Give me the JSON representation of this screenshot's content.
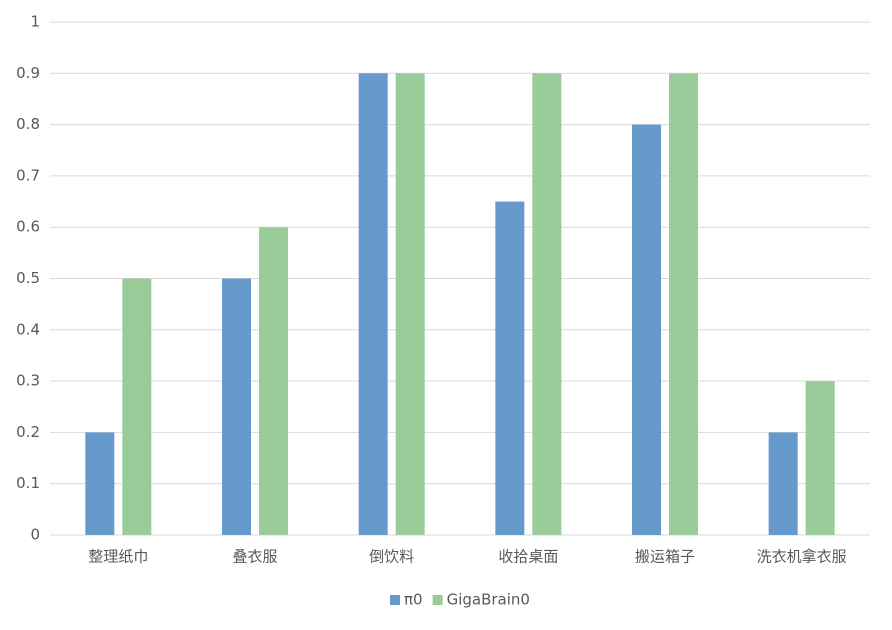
{
  "chart_data": {
    "type": "bar",
    "categories": [
      "整理纸巾",
      "叠衣服",
      "倒饮料",
      "收拾桌面",
      "搬运箱子",
      "洗衣机拿衣服"
    ],
    "series": [
      {
        "name": "π0",
        "color": "#6699cc",
        "values": [
          0.2,
          0.5,
          0.9,
          0.65,
          0.8,
          0.2
        ]
      },
      {
        "name": "GigaBrain0",
        "color": "#99cc99",
        "values": [
          0.5,
          0.6,
          0.9,
          0.9,
          0.9,
          0.3
        ]
      }
    ],
    "ylim": [
      0,
      1
    ],
    "yticks": [
      0,
      0.1,
      0.2,
      0.3,
      0.4,
      0.5,
      0.6,
      0.7,
      0.8,
      0.9,
      1
    ],
    "grid": true,
    "legend": "bottom"
  }
}
